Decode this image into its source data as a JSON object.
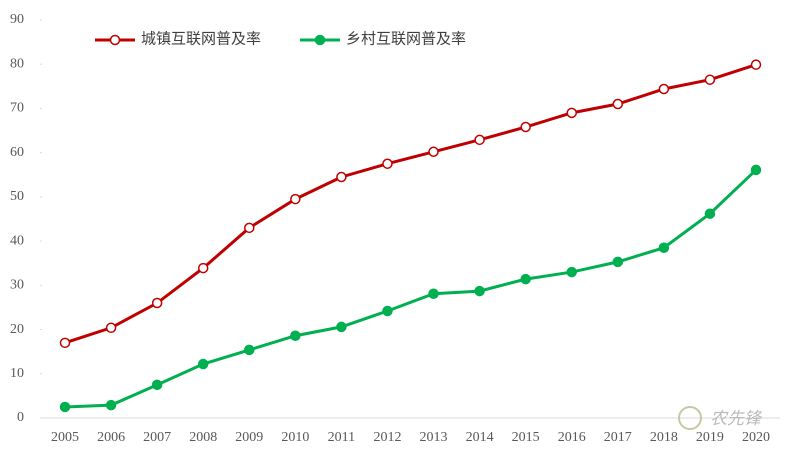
{
  "chart_data": {
    "type": "line",
    "categories": [
      "2005",
      "2006",
      "2007",
      "2008",
      "2009",
      "2010",
      "2011",
      "2012",
      "2013",
      "2014",
      "2015",
      "2016",
      "2017",
      "2018",
      "2019",
      "2020"
    ],
    "series": [
      {
        "name": "城镇互联网普及率",
        "color": "#c00000",
        "marker": "hollow",
        "values": [
          17.0,
          20.4,
          26.0,
          33.9,
          43.0,
          49.5,
          54.5,
          57.5,
          60.2,
          62.9,
          65.8,
          69.0,
          71.0,
          74.4,
          76.5,
          79.9
        ]
      },
      {
        "name": "乡村互联网普及率",
        "color": "#00b050",
        "marker": "filled",
        "values": [
          2.5,
          2.9,
          7.5,
          12.2,
          15.4,
          18.6,
          20.6,
          24.2,
          28.1,
          28.7,
          31.4,
          33.0,
          35.3,
          38.5,
          46.2,
          56.1
        ]
      }
    ],
    "ylim": [
      0,
      90
    ],
    "yticks": [
      0,
      10,
      20,
      30,
      40,
      50,
      60,
      70,
      80,
      90
    ],
    "grid": false,
    "watermark": "农先锋"
  }
}
